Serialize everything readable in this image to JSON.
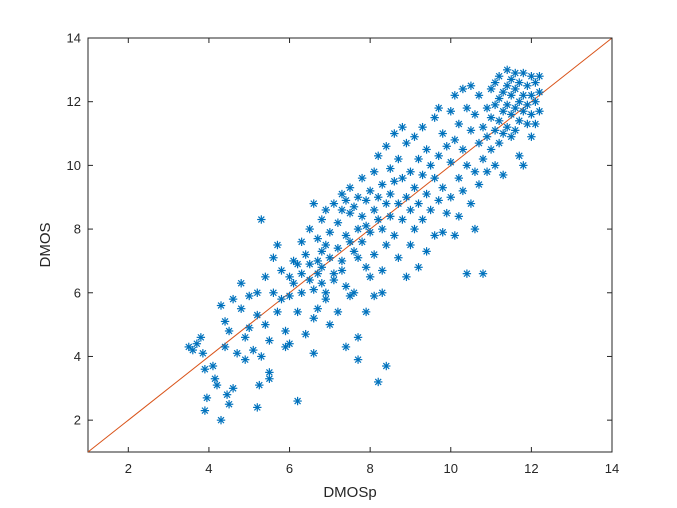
{
  "chart_data": {
    "type": "scatter",
    "title": "",
    "xlabel": "DMOSp",
    "ylabel": "DMOS",
    "xlim": [
      1,
      14
    ],
    "ylim": [
      1,
      14
    ],
    "xticks": [
      2,
      4,
      6,
      8,
      10,
      12,
      14
    ],
    "yticks": [
      2,
      4,
      6,
      8,
      10,
      12,
      14
    ],
    "xtick_labels": [
      "2",
      "4",
      "6",
      "8",
      "10",
      "12",
      "14"
    ],
    "ytick_labels": [
      "2",
      "4",
      "6",
      "8",
      "10",
      "12",
      "14"
    ],
    "grid": false,
    "marker": "asterisk",
    "colors": {
      "points": "#0072bd",
      "reference_line": "#d95319",
      "axes": "#262626"
    },
    "reference_line": {
      "from": [
        1,
        1
      ],
      "to": [
        14,
        14
      ]
    },
    "series": [
      {
        "points": [
          [
            3.5,
            4.3
          ],
          [
            3.6,
            4.2
          ],
          [
            3.7,
            4.4
          ],
          [
            3.8,
            4.6
          ],
          [
            3.85,
            4.1
          ],
          [
            3.9,
            3.6
          ],
          [
            3.95,
            2.7
          ],
          [
            3.9,
            2.3
          ],
          [
            4.1,
            3.7
          ],
          [
            4.15,
            3.3
          ],
          [
            4.2,
            3.1
          ],
          [
            4.3,
            2.0
          ],
          [
            4.45,
            2.8
          ],
          [
            4.5,
            2.5
          ],
          [
            4.6,
            3.0
          ],
          [
            4.3,
            5.6
          ],
          [
            4.4,
            5.1
          ],
          [
            4.5,
            4.8
          ],
          [
            4.4,
            4.3
          ],
          [
            4.6,
            5.8
          ],
          [
            4.7,
            4.1
          ],
          [
            4.8,
            6.3
          ],
          [
            4.8,
            5.5
          ],
          [
            4.9,
            4.6
          ],
          [
            4.9,
            3.9
          ],
          [
            5.0,
            5.9
          ],
          [
            5.0,
            4.9
          ],
          [
            5.1,
            4.2
          ],
          [
            5.2,
            5.3
          ],
          [
            5.2,
            6.0
          ],
          [
            5.3,
            8.3
          ],
          [
            5.3,
            4.0
          ],
          [
            5.25,
            3.1
          ],
          [
            5.2,
            2.4
          ],
          [
            5.4,
            6.5
          ],
          [
            5.4,
            5.0
          ],
          [
            5.5,
            4.5
          ],
          [
            5.5,
            3.5
          ],
          [
            5.5,
            3.3
          ],
          [
            5.6,
            7.1
          ],
          [
            5.6,
            6.0
          ],
          [
            5.7,
            5.4
          ],
          [
            5.7,
            7.5
          ],
          [
            5.8,
            6.7
          ],
          [
            5.8,
            5.8
          ],
          [
            5.9,
            4.8
          ],
          [
            5.9,
            4.3
          ],
          [
            6.0,
            6.5
          ],
          [
            6.0,
            5.9
          ],
          [
            6.0,
            4.4
          ],
          [
            6.1,
            7.0
          ],
          [
            6.1,
            6.3
          ],
          [
            6.2,
            6.9
          ],
          [
            6.2,
            5.4
          ],
          [
            6.2,
            2.6
          ],
          [
            6.3,
            7.6
          ],
          [
            6.3,
            6.6
          ],
          [
            6.3,
            6.0
          ],
          [
            6.4,
            7.2
          ],
          [
            6.4,
            4.7
          ],
          [
            6.5,
            8.0
          ],
          [
            6.5,
            6.9
          ],
          [
            6.5,
            6.4
          ],
          [
            6.6,
            8.8
          ],
          [
            6.6,
            6.1
          ],
          [
            6.6,
            5.2
          ],
          [
            6.6,
            4.1
          ],
          [
            6.7,
            7.7
          ],
          [
            6.7,
            7.0
          ],
          [
            6.7,
            6.6
          ],
          [
            6.7,
            5.5
          ],
          [
            6.8,
            8.3
          ],
          [
            6.8,
            7.3
          ],
          [
            6.8,
            6.8
          ],
          [
            6.8,
            6.3
          ],
          [
            6.9,
            8.6
          ],
          [
            6.9,
            7.5
          ],
          [
            6.9,
            6.0
          ],
          [
            6.9,
            5.8
          ],
          [
            7.0,
            7.9
          ],
          [
            7.0,
            7.1
          ],
          [
            7.0,
            5.0
          ],
          [
            7.1,
            8.8
          ],
          [
            7.1,
            6.6
          ],
          [
            7.1,
            6.4
          ],
          [
            7.2,
            8.2
          ],
          [
            7.2,
            7.4
          ],
          [
            7.2,
            5.4
          ],
          [
            7.3,
            9.1
          ],
          [
            7.3,
            8.6
          ],
          [
            7.3,
            7.0
          ],
          [
            7.3,
            6.7
          ],
          [
            7.4,
            8.9
          ],
          [
            7.4,
            7.8
          ],
          [
            7.4,
            6.2
          ],
          [
            7.4,
            4.3
          ],
          [
            7.5,
            9.3
          ],
          [
            7.5,
            8.5
          ],
          [
            7.5,
            7.6
          ],
          [
            7.5,
            5.9
          ],
          [
            7.6,
            8.7
          ],
          [
            7.6,
            7.3
          ],
          [
            7.6,
            6.0
          ],
          [
            7.7,
            9.0
          ],
          [
            7.7,
            8.0
          ],
          [
            7.7,
            7.1
          ],
          [
            7.7,
            4.6
          ],
          [
            7.7,
            3.9
          ],
          [
            7.8,
            9.6
          ],
          [
            7.8,
            8.4
          ],
          [
            7.8,
            7.6
          ],
          [
            7.9,
            8.9
          ],
          [
            7.9,
            8.1
          ],
          [
            7.9,
            6.8
          ],
          [
            7.9,
            5.4
          ],
          [
            8.0,
            9.2
          ],
          [
            8.0,
            7.9
          ],
          [
            8.0,
            6.5
          ],
          [
            8.1,
            9.8
          ],
          [
            8.1,
            8.6
          ],
          [
            8.1,
            7.2
          ],
          [
            8.1,
            5.9
          ],
          [
            8.2,
            10.3
          ],
          [
            8.2,
            9.0
          ],
          [
            8.2,
            8.3
          ],
          [
            8.2,
            3.2
          ],
          [
            8.3,
            9.4
          ],
          [
            8.3,
            8.0
          ],
          [
            8.3,
            6.7
          ],
          [
            8.3,
            6.0
          ],
          [
            8.4,
            10.6
          ],
          [
            8.4,
            8.8
          ],
          [
            8.4,
            7.5
          ],
          [
            8.4,
            3.7
          ],
          [
            8.5,
            9.9
          ],
          [
            8.5,
            9.1
          ],
          [
            8.5,
            8.4
          ],
          [
            8.6,
            11.0
          ],
          [
            8.6,
            9.5
          ],
          [
            8.6,
            7.8
          ],
          [
            8.7,
            10.2
          ],
          [
            8.7,
            8.8
          ],
          [
            8.7,
            7.1
          ],
          [
            8.8,
            11.2
          ],
          [
            8.8,
            9.6
          ],
          [
            8.8,
            8.3
          ],
          [
            8.9,
            10.7
          ],
          [
            8.9,
            9.0
          ],
          [
            8.9,
            6.5
          ],
          [
            9.0,
            9.8
          ],
          [
            9.0,
            8.6
          ],
          [
            9.0,
            7.5
          ],
          [
            9.1,
            10.9
          ],
          [
            9.1,
            9.3
          ],
          [
            9.1,
            8.0
          ],
          [
            9.2,
            10.2
          ],
          [
            9.2,
            8.8
          ],
          [
            9.2,
            6.8
          ],
          [
            9.3,
            11.2
          ],
          [
            9.3,
            9.7
          ],
          [
            9.3,
            8.3
          ],
          [
            9.4,
            10.5
          ],
          [
            9.4,
            9.1
          ],
          [
            9.4,
            7.3
          ],
          [
            9.5,
            10.0
          ],
          [
            9.5,
            8.6
          ],
          [
            9.6,
            11.5
          ],
          [
            9.6,
            9.6
          ],
          [
            9.6,
            7.8
          ],
          [
            9.7,
            11.8
          ],
          [
            9.7,
            10.3
          ],
          [
            9.7,
            8.9
          ],
          [
            9.8,
            11.0
          ],
          [
            9.8,
            9.3
          ],
          [
            9.8,
            7.9
          ],
          [
            9.9,
            10.6
          ],
          [
            9.9,
            8.5
          ],
          [
            10.0,
            11.7
          ],
          [
            10.0,
            10.1
          ],
          [
            10.0,
            9.0
          ],
          [
            10.1,
            12.2
          ],
          [
            10.1,
            10.8
          ],
          [
            10.1,
            7.8
          ],
          [
            10.2,
            11.3
          ],
          [
            10.2,
            9.6
          ],
          [
            10.2,
            8.4
          ],
          [
            10.3,
            12.4
          ],
          [
            10.3,
            10.5
          ],
          [
            10.3,
            9.2
          ],
          [
            10.4,
            11.8
          ],
          [
            10.4,
            10.0
          ],
          [
            10.4,
            6.6
          ],
          [
            10.5,
            12.5
          ],
          [
            10.5,
            11.1
          ],
          [
            10.5,
            8.8
          ],
          [
            10.6,
            11.6
          ],
          [
            10.6,
            9.8
          ],
          [
            10.6,
            8.0
          ],
          [
            10.7,
            12.2
          ],
          [
            10.7,
            10.7
          ],
          [
            10.7,
            9.4
          ],
          [
            10.8,
            11.2
          ],
          [
            10.8,
            10.2
          ],
          [
            10.8,
            6.6
          ],
          [
            10.9,
            11.8
          ],
          [
            10.9,
            10.9
          ],
          [
            10.9,
            9.8
          ],
          [
            11.0,
            12.4
          ],
          [
            11.0,
            11.5
          ],
          [
            11.0,
            10.5
          ],
          [
            11.1,
            12.6
          ],
          [
            11.1,
            11.9
          ],
          [
            11.1,
            11.1
          ],
          [
            11.1,
            10.0
          ],
          [
            11.2,
            12.8
          ],
          [
            11.2,
            12.1
          ],
          [
            11.2,
            11.4
          ],
          [
            11.2,
            10.7
          ],
          [
            11.3,
            12.3
          ],
          [
            11.3,
            11.7
          ],
          [
            11.3,
            11.0
          ],
          [
            11.3,
            9.7
          ],
          [
            11.4,
            13.0
          ],
          [
            11.4,
            12.5
          ],
          [
            11.4,
            11.9
          ],
          [
            11.4,
            11.2
          ],
          [
            11.5,
            12.7
          ],
          [
            11.5,
            12.2
          ],
          [
            11.5,
            11.6
          ],
          [
            11.5,
            10.9
          ],
          [
            11.6,
            12.9
          ],
          [
            11.6,
            12.4
          ],
          [
            11.6,
            11.8
          ],
          [
            11.6,
            11.1
          ],
          [
            11.7,
            12.6
          ],
          [
            11.7,
            12.0
          ],
          [
            11.7,
            11.4
          ],
          [
            11.7,
            10.3
          ],
          [
            11.8,
            12.9
          ],
          [
            11.8,
            12.2
          ],
          [
            11.8,
            11.7
          ],
          [
            11.8,
            10.0
          ],
          [
            11.9,
            12.5
          ],
          [
            11.9,
            11.9
          ],
          [
            11.9,
            11.3
          ],
          [
            12.0,
            12.8
          ],
          [
            12.0,
            12.2
          ],
          [
            12.0,
            11.6
          ],
          [
            12.0,
            10.9
          ],
          [
            12.1,
            12.6
          ],
          [
            12.1,
            12.0
          ],
          [
            12.1,
            11.3
          ],
          [
            12.2,
            12.8
          ],
          [
            12.2,
            12.3
          ],
          [
            12.2,
            11.7
          ]
        ]
      }
    ]
  }
}
